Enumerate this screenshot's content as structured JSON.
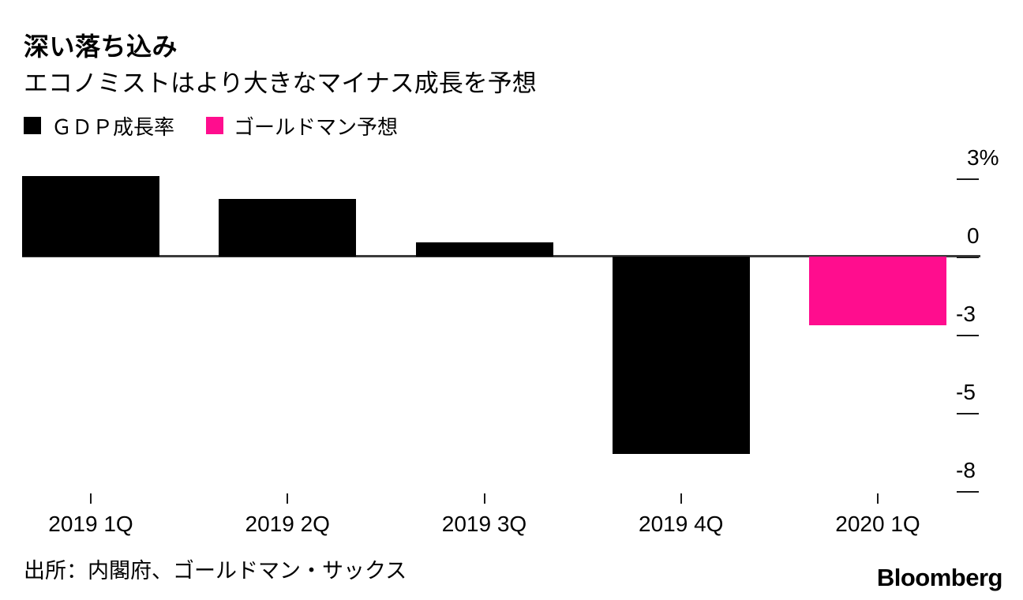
{
  "header": {
    "title": "深い落ち込み",
    "subtitle": "エコノミストはより大きなマイナス成長を予想"
  },
  "legend": {
    "items": [
      {
        "label": "ＧＤＰ成長率",
        "color": "#000000"
      },
      {
        "label": "ゴールドマン予想",
        "color": "#ff0d8e"
      }
    ]
  },
  "chart_data": {
    "type": "bar",
    "categories": [
      "2019 1Q",
      "2019 2Q",
      "2019 3Q",
      "2019 4Q",
      "2020 1Q"
    ],
    "series": [
      {
        "name": "ＧＤＰ成長率",
        "color": "#000000",
        "values": [
          2.8,
          2.0,
          0.5,
          -6.9,
          null
        ]
      },
      {
        "name": "ゴールドマン予想",
        "color": "#ff0d8e",
        "values": [
          null,
          null,
          null,
          null,
          -2.4
        ]
      }
    ],
    "title": "深い落ち込み",
    "subtitle": "エコノミストはより大きなマイナス成長を予想",
    "xlabel": "",
    "ylabel": "",
    "y_tick_labels": [
      "3%",
      "0",
      "-3",
      "-5",
      "-8"
    ],
    "ylim": [
      -8.2,
      3.0
    ],
    "unit": "%",
    "grid": false,
    "legend_position": "top-left",
    "zero_line": true
  },
  "footer": {
    "source": "出所：内閣府、ゴールドマン・サックス",
    "logo": "Bloomberg"
  }
}
